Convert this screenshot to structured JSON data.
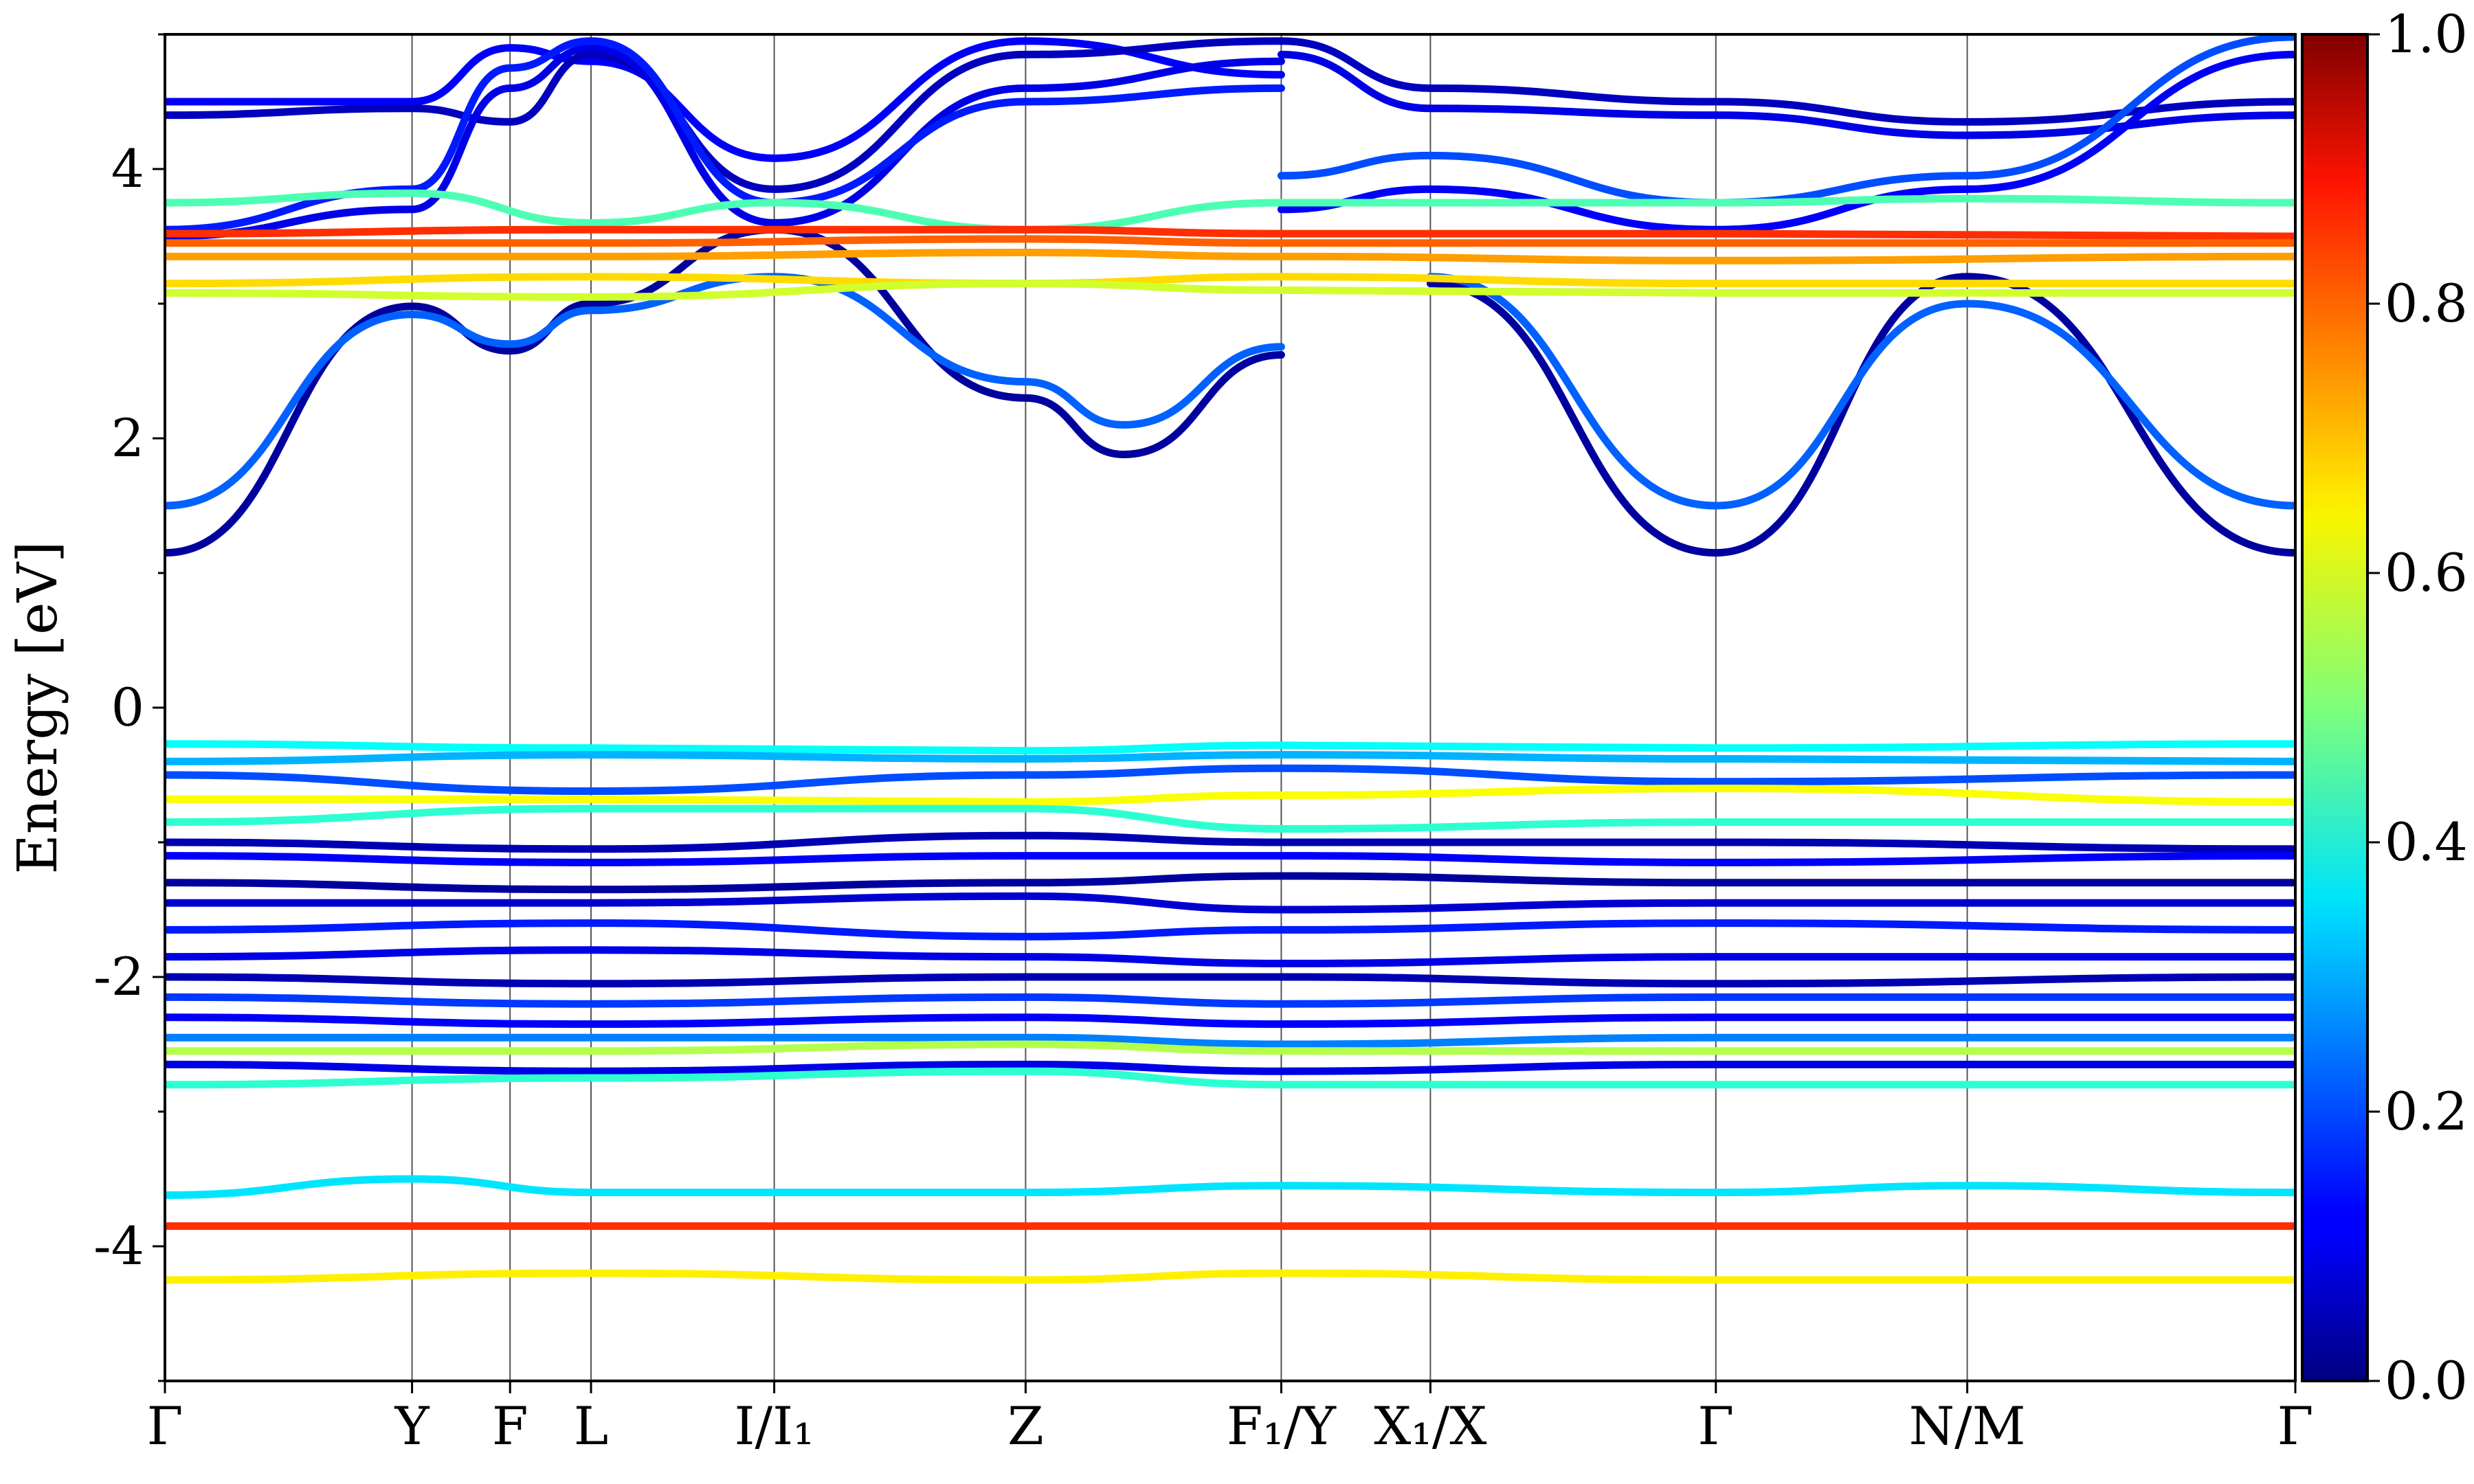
{
  "chart_data": {
    "type": "line",
    "title": "",
    "xlabel": "",
    "ylabel": "Energy [eV]",
    "ylim": [
      -5,
      5
    ],
    "yticks": [
      -4,
      -2,
      0,
      2,
      4
    ],
    "ytick_labels": [
      "-4",
      "-2",
      "0",
      "2",
      "4"
    ],
    "xlim": [
      0,
      1
    ],
    "kpath": [
      {
        "label": "Γ",
        "x": 0.0
      },
      {
        "label": "Y",
        "x": 0.116
      },
      {
        "label": "F",
        "x": 0.162
      },
      {
        "label": "L",
        "x": 0.2
      },
      {
        "label": "I/I₁",
        "x": 0.286
      },
      {
        "label": "Z",
        "x": 0.404
      },
      {
        "label": "F₁/Y",
        "x": 0.524
      },
      {
        "label": "X₁/X",
        "x": 0.594
      },
      {
        "label": "Γ",
        "x": 0.728
      },
      {
        "label": "N/M",
        "x": 0.846
      },
      {
        "label": "Γ",
        "x": 1.0
      }
    ],
    "colorbar": {
      "colormap": "jet",
      "range": [
        0.0,
        1.0
      ],
      "tick_labels": [
        "0.0",
        "0.2",
        "0.4",
        "0.6",
        "0.8",
        "1.0"
      ]
    },
    "series": [
      {
        "x": [
          0,
          0.116,
          0.162,
          0.2,
          0.286,
          0.404,
          0.45,
          0.524
        ],
        "y": [
          1.15,
          2.98,
          2.65,
          3.0,
          3.55,
          2.3,
          1.88,
          2.62
        ],
        "c": 0.03
      },
      {
        "x": [
          0,
          0.116,
          0.162,
          0.2,
          0.286,
          0.404,
          0.45,
          0.524
        ],
        "y": [
          1.5,
          2.92,
          2.7,
          2.95,
          3.2,
          2.42,
          2.1,
          2.68
        ],
        "c": 0.22
      },
      {
        "x": [
          0.594,
          0.728,
          0.846,
          1.0
        ],
        "y": [
          3.15,
          1.15,
          3.2,
          1.15
        ],
        "c": 0.03
      },
      {
        "x": [
          0.594,
          0.728,
          0.846,
          1.0
        ],
        "y": [
          3.2,
          1.5,
          3.0,
          1.5
        ],
        "c": 0.22
      },
      {
        "x": [
          0,
          0.116,
          0.162,
          0.2,
          0.286,
          0.404,
          0.524
        ],
        "y": [
          4.5,
          4.5,
          4.9,
          4.8,
          4.08,
          4.95,
          4.7
        ],
        "c": 0.12
      },
      {
        "x": [
          0,
          0.116,
          0.162,
          0.2,
          0.286,
          0.404,
          0.524
        ],
        "y": [
          4.4,
          4.45,
          4.35,
          4.85,
          3.85,
          4.85,
          4.95
        ],
        "c": 0.06
      },
      {
        "x": [
          0,
          0.116,
          0.162,
          0.2,
          0.286,
          0.404,
          0.524
        ],
        "y": [
          3.5,
          3.7,
          4.6,
          4.9,
          3.6,
          4.6,
          4.8
        ],
        "c": 0.1
      },
      {
        "x": [
          0,
          0.116,
          0.162,
          0.2,
          0.286,
          0.404,
          0.524
        ],
        "y": [
          3.55,
          3.85,
          4.75,
          4.95,
          3.75,
          4.5,
          4.6
        ],
        "c": 0.15
      },
      {
        "x": [
          0.524,
          0.594,
          0.728,
          0.846,
          1.0
        ],
        "y": [
          4.95,
          4.6,
          4.5,
          4.35,
          4.5
        ],
        "c": 0.06
      },
      {
        "x": [
          0.524,
          0.594,
          0.728,
          0.846,
          1.0
        ],
        "y": [
          4.85,
          4.45,
          4.4,
          4.25,
          4.4
        ],
        "c": 0.1
      },
      {
        "x": [
          0.524,
          0.594,
          0.728,
          0.846,
          1.0
        ],
        "y": [
          3.95,
          4.1,
          3.75,
          3.95,
          4.98
        ],
        "c": 0.2
      },
      {
        "x": [
          0.524,
          0.594,
          0.728,
          0.846,
          1.0
        ],
        "y": [
          3.7,
          3.85,
          3.55,
          3.85,
          4.85
        ],
        "c": 0.12
      },
      {
        "x": [
          0,
          0.116,
          0.2,
          0.286,
          0.404,
          0.524,
          0.594,
          0.728,
          0.846,
          1.0
        ],
        "y": [
          3.75,
          3.82,
          3.6,
          3.75,
          3.55,
          3.75,
          3.75,
          3.75,
          3.78,
          3.75
        ],
        "c": 0.45
      },
      {
        "x": [
          0,
          0.2,
          0.404,
          0.524,
          0.728,
          1.0
        ],
        "y": [
          3.52,
          3.55,
          3.55,
          3.52,
          3.52,
          3.5
        ],
        "c": 0.83
      },
      {
        "x": [
          0,
          0.2,
          0.404,
          0.524,
          0.728,
          1.0
        ],
        "y": [
          3.45,
          3.45,
          3.48,
          3.45,
          3.45,
          3.45
        ],
        "c": 0.78
      },
      {
        "x": [
          0,
          0.2,
          0.404,
          0.524,
          0.728,
          1.0
        ],
        "y": [
          3.35,
          3.35,
          3.38,
          3.35,
          3.32,
          3.35
        ],
        "c": 0.72
      },
      {
        "x": [
          0,
          0.2,
          0.404,
          0.524,
          0.728,
          1.0
        ],
        "y": [
          3.15,
          3.2,
          3.15,
          3.2,
          3.15,
          3.15
        ],
        "c": 0.66
      },
      {
        "x": [
          0,
          0.2,
          0.404,
          0.524,
          0.728,
          1.0
        ],
        "y": [
          3.08,
          3.05,
          3.15,
          3.1,
          3.08,
          3.08
        ],
        "c": 0.58
      },
      {
        "x": [
          0,
          0.2,
          0.404,
          0.524,
          0.728,
          1.0
        ],
        "y": [
          -0.27,
          -0.3,
          -0.32,
          -0.28,
          -0.3,
          -0.27
        ],
        "c": 0.38
      },
      {
        "x": [
          0,
          0.2,
          0.404,
          0.524,
          0.728,
          1.0
        ],
        "y": [
          -0.4,
          -0.35,
          -0.38,
          -0.35,
          -0.38,
          -0.4
        ],
        "c": 0.3
      },
      {
        "x": [
          0,
          0.2,
          0.404,
          0.524,
          0.728,
          1.0
        ],
        "y": [
          -0.5,
          -0.62,
          -0.5,
          -0.45,
          -0.55,
          -0.5
        ],
        "c": 0.2
      },
      {
        "x": [
          0,
          0.2,
          0.404,
          0.524,
          0.728,
          1.0
        ],
        "y": [
          -0.68,
          -0.68,
          -0.7,
          -0.65,
          -0.6,
          -0.7
        ],
        "c": 0.62
      },
      {
        "x": [
          0,
          0.2,
          0.404,
          0.524,
          0.728,
          1.0
        ],
        "y": [
          -0.85,
          -0.75,
          -0.75,
          -0.9,
          -0.85,
          -0.85
        ],
        "c": 0.42
      },
      {
        "x": [
          0,
          0.2,
          0.404,
          0.524,
          0.728,
          1.0
        ],
        "y": [
          -1.0,
          -1.05,
          -0.95,
          -1.0,
          -1.0,
          -1.05
        ],
        "c": 0.05
      },
      {
        "x": [
          0,
          0.2,
          0.404,
          0.524,
          0.728,
          1.0
        ],
        "y": [
          -1.1,
          -1.15,
          -1.1,
          -1.1,
          -1.15,
          -1.1
        ],
        "c": 0.12
      },
      {
        "x": [
          0,
          0.2,
          0.404,
          0.524,
          0.728,
          1.0
        ],
        "y": [
          -1.3,
          -1.35,
          -1.3,
          -1.25,
          -1.3,
          -1.3
        ],
        "c": 0.03
      },
      {
        "x": [
          0,
          0.2,
          0.404,
          0.524,
          0.728,
          1.0
        ],
        "y": [
          -1.45,
          -1.45,
          -1.4,
          -1.5,
          -1.45,
          -1.45
        ],
        "c": 0.08
      },
      {
        "x": [
          0,
          0.2,
          0.404,
          0.524,
          0.728,
          1.0
        ],
        "y": [
          -1.65,
          -1.6,
          -1.7,
          -1.65,
          -1.6,
          -1.65
        ],
        "c": 0.15
      },
      {
        "x": [
          0,
          0.2,
          0.404,
          0.524,
          0.728,
          1.0
        ],
        "y": [
          -1.85,
          -1.8,
          -1.85,
          -1.9,
          -1.85,
          -1.85
        ],
        "c": 0.1
      },
      {
        "x": [
          0,
          0.2,
          0.404,
          0.524,
          0.728,
          1.0
        ],
        "y": [
          -2.0,
          -2.05,
          -2.0,
          -2.0,
          -2.05,
          -2.0
        ],
        "c": 0.05
      },
      {
        "x": [
          0,
          0.2,
          0.404,
          0.524,
          0.728,
          1.0
        ],
        "y": [
          -2.15,
          -2.2,
          -2.15,
          -2.2,
          -2.15,
          -2.15
        ],
        "c": 0.18
      },
      {
        "x": [
          0,
          0.2,
          0.404,
          0.524,
          0.728,
          1.0
        ],
        "y": [
          -2.3,
          -2.35,
          -2.3,
          -2.35,
          -2.3,
          -2.3
        ],
        "c": 0.12
      },
      {
        "x": [
          0,
          0.2,
          0.404,
          0.524,
          0.728,
          1.0
        ],
        "y": [
          -2.45,
          -2.45,
          -2.45,
          -2.5,
          -2.45,
          -2.45
        ],
        "c": 0.25
      },
      {
        "x": [
          0,
          0.2,
          0.404,
          0.524,
          0.728,
          1.0
        ],
        "y": [
          -2.55,
          -2.55,
          -2.5,
          -2.55,
          -2.55,
          -2.55
        ],
        "c": 0.55
      },
      {
        "x": [
          0,
          0.2,
          0.404,
          0.524,
          0.728,
          1.0
        ],
        "y": [
          -2.65,
          -2.7,
          -2.65,
          -2.7,
          -2.65,
          -2.65
        ],
        "c": 0.1
      },
      {
        "x": [
          0,
          0.2,
          0.404,
          0.524,
          0.728,
          1.0
        ],
        "y": [
          -2.8,
          -2.75,
          -2.7,
          -2.8,
          -2.8,
          -2.8
        ],
        "c": 0.42
      },
      {
        "x": [
          0,
          0.116,
          0.2,
          0.404,
          0.524,
          0.728,
          0.846,
          1.0
        ],
        "y": [
          -3.62,
          -3.5,
          -3.6,
          -3.6,
          -3.55,
          -3.6,
          -3.55,
          -3.6
        ],
        "c": 0.35
      },
      {
        "x": [
          0,
          0.2,
          0.404,
          0.524,
          0.728,
          1.0
        ],
        "y": [
          -3.85,
          -3.85,
          -3.85,
          -3.85,
          -3.85,
          -3.85
        ],
        "c": 0.83
      },
      {
        "x": [
          0,
          0.2,
          0.404,
          0.524,
          0.728,
          1.0
        ],
        "y": [
          -4.25,
          -4.2,
          -4.25,
          -4.2,
          -4.25,
          -4.25
        ],
        "c": 0.64
      }
    ]
  }
}
